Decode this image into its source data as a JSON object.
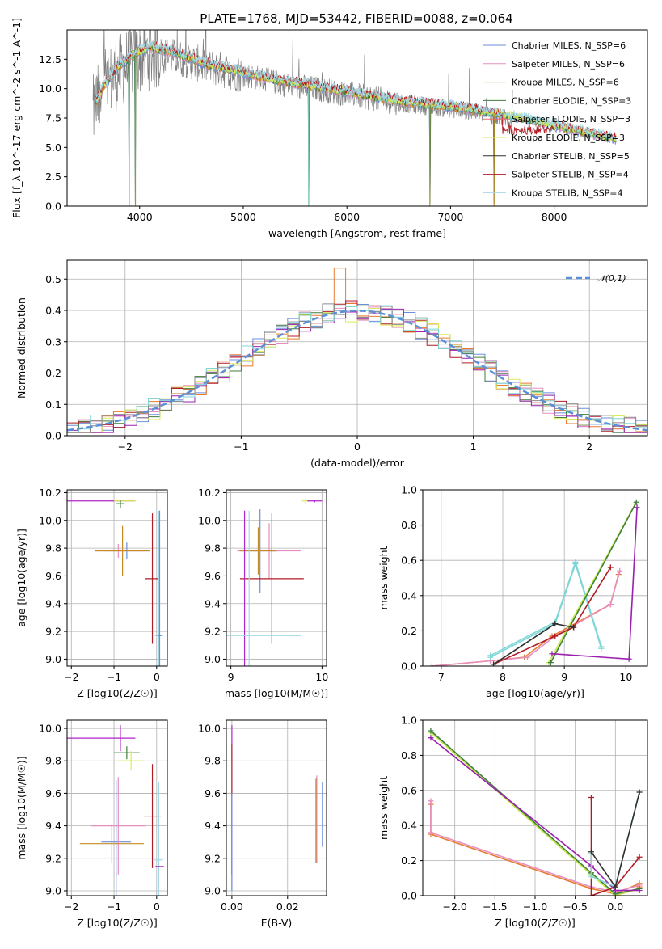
{
  "title": "PLATE=1768, MJD=53442, FIBERID=0088, z=0.064",
  "colors": {
    "data_spectrum": "#7f7f7f",
    "gaussian": "#5b8fd6",
    "series": [
      "#6c8ed9",
      "#e58fc1",
      "#c78b24",
      "#3f7f3f",
      "#ef6a6a",
      "#d9ea5a",
      "#303030",
      "#b01c24",
      "#a6d7e6"
    ],
    "residual_hist": [
      "#6c8ed9",
      "#e58fc1",
      "#e87b2f",
      "#3f7f3f",
      "#b01c24",
      "#d9ea5a",
      "#9b1fb0",
      "#7fd6d6",
      "#8a8a8a"
    ]
  },
  "legend": {
    "spectrum_labels": [
      "Chabrier MILES, N_SSP=6",
      "Salpeter MILES, N_SSP=6",
      "Kroupa MILES, N_SSP=6",
      "Chabrier ELODIE, N_SSP=3",
      "Salpeter ELODIE, N_SSP=3",
      "Kroupa ELODIE, N_SSP=3",
      "Chabrier STELIB, N_SSP=5",
      "Salpeter STELIB, N_SSP=4",
      "Kroupa STELIB, N_SSP=4"
    ],
    "gaussian_label": "𝒩(0,1)"
  },
  "chart_data": [
    {
      "id": "spectrum",
      "type": "line",
      "xlabel": "wavelength [Angstrom, rest frame]",
      "ylabel": "Flux [f_λ 10^-17 erg cm^-2 s^-1 A^-1]",
      "xlim": [
        3300,
        8900
      ],
      "ylim": [
        0,
        15.0
      ],
      "xticks": [
        4000,
        5000,
        6000,
        7000,
        8000
      ],
      "yticks": [
        0.0,
        2.5,
        5.0,
        7.5,
        10.0,
        12.5
      ],
      "legend_position": "upper-right",
      "grid": false,
      "continuum_model": {
        "x": [
          3550,
          3650,
          3800,
          3950,
          4100,
          4300,
          4500,
          4700,
          4900,
          5100,
          5300,
          5500,
          5700,
          5900,
          6100,
          6300,
          6500,
          6700,
          6900,
          7100,
          7300,
          7500,
          7700,
          7900,
          8100,
          8300,
          8500,
          8650
        ],
        "y": [
          8.4,
          10.2,
          12.0,
          13.0,
          13.6,
          13.2,
          12.6,
          12.0,
          11.6,
          11.2,
          10.8,
          10.5,
          10.2,
          9.9,
          9.6,
          9.3,
          9.0,
          8.8,
          8.6,
          8.4,
          8.1,
          7.8,
          7.5,
          7.1,
          6.7,
          6.3,
          5.9,
          5.7
        ]
      },
      "data_spectrum": {
        "x": [
          3550,
          3650,
          3800,
          3950,
          4100,
          4300,
          4500,
          4700,
          4900,
          5100,
          5300,
          5500,
          5700,
          5900,
          6100,
          6300,
          6500,
          6700,
          6900,
          7100,
          7300,
          7500,
          7600
        ],
        "y": [
          8.0,
          10.0,
          11.5,
          12.5,
          13.0,
          12.8,
          12.3,
          11.8,
          11.4,
          11.0,
          10.6,
          10.2,
          10.0,
          9.7,
          9.4,
          9.1,
          8.8,
          8.6,
          8.4,
          8.2,
          7.9,
          7.5,
          7.3
        ]
      },
      "absorption_features_x": [
        3900,
        3960,
        5630,
        6800,
        7420
      ]
    },
    {
      "id": "residuals",
      "type": "histogram",
      "xlabel": "(data-model)/error",
      "ylabel": "Normed distribution",
      "xlim": [
        -2.5,
        2.5
      ],
      "ylim": [
        0.0,
        0.56
      ],
      "xticks": [
        -2,
        -1,
        0,
        1,
        2
      ],
      "yticks": [
        0.0,
        0.1,
        0.2,
        0.3,
        0.4,
        0.5
      ],
      "grid": true,
      "bin_width": 0.1,
      "gaussian": {
        "mu": 0,
        "sigma": 1
      }
    },
    {
      "id": "age_vs_Z",
      "type": "errorbar",
      "xlabel": "Z [log10(Z/Z☉)]",
      "ylabel": "age [log10(age/yr)]",
      "xlim": [
        -2.1,
        0.25
      ],
      "ylim": [
        8.95,
        10.22
      ],
      "xticks": [
        -2,
        -1,
        0
      ],
      "yticks": [
        9.0,
        9.2,
        9.4,
        9.6,
        9.8,
        10.0,
        10.2
      ],
      "grid": true,
      "points": [
        {
          "x": -1.3,
          "y": 10.14,
          "xerr": 0.8,
          "yerr": 0.0,
          "series": 6
        },
        {
          "x": -0.75,
          "y": 10.14,
          "xerr": 0.25,
          "yerr": 0.0,
          "series": 5
        },
        {
          "x": -0.85,
          "y": 10.12,
          "xerr": 0.1,
          "yerr": 0.03,
          "series": 3
        },
        {
          "x": -0.7,
          "y": 9.78,
          "xerr": 0.55,
          "yerr": 0.06,
          "series": 0
        },
        {
          "x": -0.9,
          "y": 9.78,
          "xerr": 0.55,
          "yerr": 0.05,
          "series": 1
        },
        {
          "x": -0.8,
          "y": 9.78,
          "xerr": 0.65,
          "yerr": 0.18,
          "series": 2
        },
        {
          "x": -0.1,
          "y": 9.58,
          "xerr": 0.17,
          "yerr": 0.47,
          "series": 7
        },
        {
          "x": 0.05,
          "y": 9.17,
          "xerr": 0.1,
          "yerr": 0.9,
          "series": 8
        },
        {
          "x": 0.07,
          "y": 9.17,
          "xerr": 0.06,
          "yerr": 0.9,
          "series": 0
        }
      ]
    },
    {
      "id": "age_vs_mass",
      "type": "errorbar",
      "xlabel": "mass [log10(M/M☉)]",
      "ylabel": "",
      "xlim": [
        8.95,
        10.05
      ],
      "ylim": [
        8.95,
        10.22
      ],
      "xticks": [
        9,
        10
      ],
      "yticks": [
        9.0,
        9.2,
        9.4,
        9.6,
        9.8,
        10.0,
        10.2
      ],
      "grid": true,
      "points": [
        {
          "x": 9.82,
          "y": 10.14,
          "xerr": 0.04,
          "yerr": 0.02,
          "series": 5
        },
        {
          "x": 9.92,
          "y": 10.14,
          "xerr": 0.08,
          "yerr": 0.01,
          "series": 6
        },
        {
          "x": 9.32,
          "y": 9.78,
          "xerr": 0.2,
          "yerr": 0.3,
          "series": 0
        },
        {
          "x": 9.42,
          "y": 9.78,
          "xerr": 0.35,
          "yerr": 0.2,
          "series": 1
        },
        {
          "x": 9.3,
          "y": 9.78,
          "xerr": 0.2,
          "yerr": 0.17,
          "series": 2
        },
        {
          "x": 9.45,
          "y": 9.58,
          "xerr": 0.35,
          "yerr": 0.47,
          "series": 7
        },
        {
          "x": 9.15,
          "y": 9.17,
          "xerr": 0.0,
          "yerr": 0.9,
          "series": 6
        },
        {
          "x": 9.2,
          "y": 9.17,
          "xerr": 0.0,
          "yerr": 0.9,
          "series": 8
        },
        {
          "x": 9.22,
          "y": 9.17,
          "xerr": 0.55,
          "yerr": 0.0,
          "series": 8
        }
      ]
    },
    {
      "id": "weight_vs_age",
      "type": "line",
      "xlabel": "age [log10(age/yr)]",
      "ylabel": "mass weight",
      "xlim": [
        6.7,
        10.35
      ],
      "ylim": [
        0.0,
        1.0
      ],
      "xticks": [
        7,
        8,
        9,
        10
      ],
      "yticks": [
        0.0,
        0.2,
        0.4,
        0.6,
        0.8,
        1.0
      ],
      "grid": true,
      "series": [
        {
          "series": 2,
          "x": [
            6.85,
            7.8,
            8.35,
            8.8,
            9.75,
            9.88
          ],
          "y": [
            0.0,
            0.03,
            0.05,
            0.17,
            0.35,
            0.52
          ]
        },
        {
          "series": 1,
          "x": [
            6.85,
            7.8,
            8.4,
            8.85,
            9.75,
            9.9
          ],
          "y": [
            0.0,
            0.03,
            0.05,
            0.17,
            0.35,
            0.54
          ]
        },
        {
          "series": 8,
          "x": [
            7.8,
            8.85,
            9.18,
            9.6
          ],
          "y": [
            0.06,
            0.25,
            0.59,
            0.11
          ]
        },
        {
          "series": 8,
          "x": [
            7.8,
            8.85,
            9.18,
            9.6
          ],
          "y": [
            0.05,
            0.24,
            0.58,
            0.1
          ]
        },
        {
          "series": 5,
          "x": [
            8.75,
            10.15
          ],
          "y": [
            0.02,
            0.92
          ]
        },
        {
          "series": 3,
          "x": [
            8.78,
            10.17
          ],
          "y": [
            0.02,
            0.93
          ]
        },
        {
          "series": 6,
          "x": [
            8.8,
            10.05,
            10.18
          ],
          "y": [
            0.07,
            0.04,
            0.9
          ]
        },
        {
          "series": 7,
          "x": [
            7.85,
            8.85,
            9.15,
            9.75
          ],
          "y": [
            0.01,
            0.17,
            0.22,
            0.56
          ]
        },
        {
          "series": 9,
          "x": [
            7.85,
            8.85,
            9.15
          ],
          "y": [
            0.01,
            0.24,
            0.22
          ]
        }
      ]
    },
    {
      "id": "mass_vs_Z",
      "type": "errorbar",
      "xlabel": "Z [log10(Z/Z☉)]",
      "ylabel": "mass [log10(M/M☉)]",
      "xlim": [
        -2.1,
        0.25
      ],
      "ylim": [
        8.97,
        10.05
      ],
      "xticks": [
        -2,
        -1,
        0
      ],
      "yticks": [
        9.0,
        9.2,
        9.4,
        9.6,
        9.8,
        10.0
      ],
      "grid": true,
      "points": [
        {
          "x": -1.3,
          "y": 9.94,
          "xerr": 0.8,
          "yerr": 0.0,
          "series": 6
        },
        {
          "x": -0.85,
          "y": 9.94,
          "xerr": 0.0,
          "yerr": 0.08,
          "series": 6
        },
        {
          "x": -0.7,
          "y": 9.85,
          "xerr": 0.3,
          "yerr": 0.04,
          "series": 3
        },
        {
          "x": -0.6,
          "y": 9.8,
          "xerr": 0.3,
          "yerr": 0.06,
          "series": 5
        },
        {
          "x": -0.95,
          "y": 9.3,
          "xerr": 0.35,
          "yerr": 0.38,
          "series": 0
        },
        {
          "x": -0.9,
          "y": 9.4,
          "xerr": 0.65,
          "yerr": 0.3,
          "series": 1
        },
        {
          "x": -1.05,
          "y": 9.29,
          "xerr": 0.75,
          "yerr": 0.12,
          "series": 2
        },
        {
          "x": -0.1,
          "y": 9.46,
          "xerr": 0.2,
          "yerr": 0.32,
          "series": 7
        },
        {
          "x": 0.05,
          "y": 9.19,
          "xerr": 0.1,
          "yerr": 0.48,
          "series": 8
        },
        {
          "x": 0.07,
          "y": 9.15,
          "xerr": 0.1,
          "yerr": 0.0,
          "series": 6
        }
      ]
    },
    {
      "id": "mass_vs_ebv",
      "type": "errorbar",
      "xlabel": "E(B-V)",
      "ylabel": "",
      "xlim": [
        -0.002,
        0.034
      ],
      "ylim": [
        8.97,
        10.05
      ],
      "xticks": [
        0.0,
        0.02
      ],
      "yticks": [
        9.0,
        9.2,
        9.4,
        9.6,
        9.8,
        10.0
      ],
      "grid": true,
      "points": [
        {
          "x": 0.0,
          "y": 9.95,
          "xerr": 0.0,
          "yerr": 0.07,
          "series": 6
        },
        {
          "x": 0.0,
          "y": 9.85,
          "xerr": 0.0,
          "yerr": 0.05,
          "series": 5
        },
        {
          "x": 0.0,
          "y": 9.45,
          "xerr": 0.0,
          "yerr": 0.45,
          "series": 8
        },
        {
          "x": 0.0,
          "y": 9.5,
          "xerr": 0.0,
          "yerr": 0.4,
          "series": 7
        },
        {
          "x": 0.0,
          "y": 9.3,
          "xerr": 0.0,
          "yerr": 0.3,
          "series": 0
        },
        {
          "x": 0.0305,
          "y": 9.44,
          "xerr": 0.0,
          "yerr": 0.27,
          "series": 1
        },
        {
          "x": 0.0302,
          "y": 9.43,
          "xerr": 0.0,
          "yerr": 0.26,
          "series": 2
        },
        {
          "x": 0.0325,
          "y": 9.47,
          "xerr": 0.0,
          "yerr": 0.2,
          "series": 0
        }
      ]
    },
    {
      "id": "weight_vs_Z",
      "type": "line",
      "xlabel": "Z [log10(Z/Z☉)]",
      "ylabel": "mass weight",
      "xlim": [
        -2.4,
        0.4
      ],
      "ylim": [
        0.0,
        1.0
      ],
      "xticks": [
        -2.0,
        -1.5,
        -1.0,
        -0.5,
        0.0
      ],
      "yticks": [
        0.0,
        0.2,
        0.4,
        0.6,
        0.8,
        1.0
      ],
      "grid": true,
      "series": [
        {
          "series": 2,
          "x": [
            -2.3,
            -2.3,
            -0.3,
            0.0,
            0.3,
            0.3
          ],
          "y": [
            0.52,
            0.35,
            0.04,
            0.01,
            0.07,
            0.05
          ]
        },
        {
          "series": 1,
          "x": [
            -2.3,
            -2.3,
            -0.3,
            0.0,
            0.3
          ],
          "y": [
            0.54,
            0.36,
            0.05,
            0.02,
            0.06
          ]
        },
        {
          "series": 5,
          "x": [
            -2.3,
            -0.3,
            0.0,
            0.3
          ],
          "y": [
            0.93,
            0.12,
            0.0,
            0.04
          ]
        },
        {
          "series": 3,
          "x": [
            -2.3,
            -0.3,
            0.0,
            0.3
          ],
          "y": [
            0.94,
            0.13,
            0.01,
            0.04
          ]
        },
        {
          "series": 6,
          "x": [
            -2.3,
            -0.3,
            0.0,
            0.3
          ],
          "y": [
            0.9,
            0.17,
            0.03,
            0.03
          ]
        },
        {
          "series": 7,
          "x": [
            -0.3,
            -0.3,
            0.0,
            0.3
          ],
          "y": [
            0.56,
            0.0,
            0.05,
            0.22
          ]
        },
        {
          "series": 8,
          "x": [
            -0.3,
            -0.3,
            0.0,
            0.3
          ],
          "y": [
            0.24,
            0.11,
            0.05,
            0.59
          ]
        },
        {
          "series": 9,
          "x": [
            -0.3,
            0.0,
            0.3
          ],
          "y": [
            0.25,
            0.05,
            0.59
          ]
        }
      ]
    }
  ]
}
